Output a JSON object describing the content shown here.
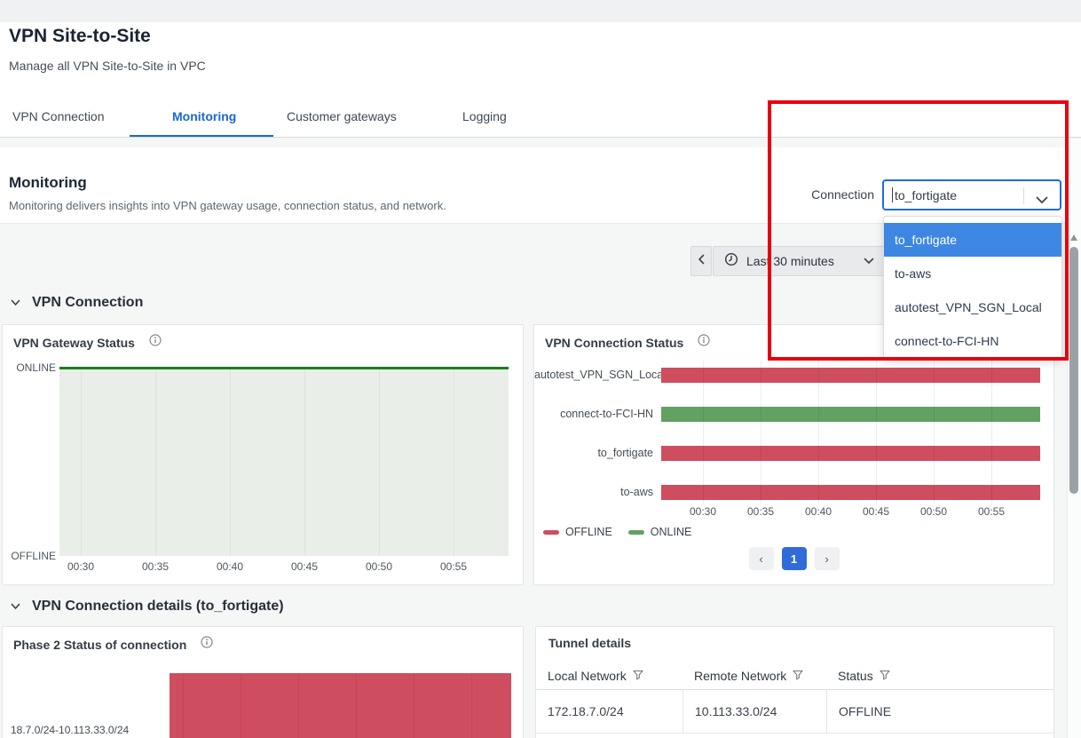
{
  "page": {
    "title": "VPN Site-to-Site",
    "subtitle": "Manage all VPN Site-to-Site in VPC"
  },
  "tabs": {
    "items": [
      {
        "label": "VPN Connection",
        "active": false
      },
      {
        "label": "Monitoring",
        "active": true
      },
      {
        "label": "Customer gateways",
        "active": false
      },
      {
        "label": "Logging",
        "active": false
      }
    ]
  },
  "monitoring": {
    "heading": "Monitoring",
    "description": "Monitoring delivers insights into VPN gateway usage, connection status, and network."
  },
  "connection_select": {
    "label": "Connection",
    "value": "to_fortigate",
    "options": [
      "to_fortigate",
      "to-aws",
      "autotest_VPN_SGN_Local",
      "connect-to-FCI-HN"
    ],
    "highlighted_option": "to_fortigate"
  },
  "time_range": {
    "label": "Last 30 minutes"
  },
  "sections": {
    "vpn_connection": "VPN Connection",
    "vpn_connection_details": "VPN Connection details (to_fortigate)"
  },
  "chart_data": [
    {
      "id": "vpn_gateway_status",
      "type": "area",
      "title": "VPN Gateway Status",
      "y_tick_labels": [
        "ONLINE",
        "OFFLINE"
      ],
      "x_tick_labels": [
        "00:30",
        "00:35",
        "00:40",
        "00:45",
        "00:50",
        "00:55"
      ],
      "series": [
        {
          "name": "VPN Gateway",
          "values": [
            {
              "x_range": [
                "00:30",
                "00:59"
              ],
              "y": "ONLINE"
            }
          ]
        }
      ],
      "line_color": "#1e7d1f",
      "fill_color": "#e9efe8",
      "grid": "vertical"
    },
    {
      "id": "vpn_connection_status",
      "type": "bar",
      "orientation": "horizontal",
      "title": "VPN Connection Status",
      "categories": [
        "autotest_VPN_SGN_Local",
        "connect-to-FCI-HN",
        "to_fortigate",
        "to-aws"
      ],
      "statuses": [
        "OFFLINE",
        "ONLINE",
        "OFFLINE",
        "OFFLINE"
      ],
      "x_tick_labels": [
        "00:30",
        "00:35",
        "00:40",
        "00:45",
        "00:50",
        "00:55"
      ],
      "x_range": [
        "00:30",
        "00:59"
      ],
      "legend": [
        {
          "label": "OFFLINE",
          "color": "#ce4d5f"
        },
        {
          "label": "ONLINE",
          "color": "#61a162"
        }
      ],
      "legend_position": "bottom-left"
    },
    {
      "id": "phase2_status",
      "type": "bar",
      "orientation": "horizontal",
      "title": "Phase 2 Status of connection",
      "categories": [
        "18.7.0/24-10.113.33.0/24"
      ],
      "statuses": [
        "OFFLINE"
      ],
      "bar_color": "#ce4d5f"
    }
  ],
  "pagination": {
    "current": "1",
    "prev": "‹",
    "next": "›"
  },
  "tunnel_details": {
    "title": "Tunnel details",
    "columns": [
      "Local Network",
      "Remote Network",
      "Status"
    ],
    "rows": [
      [
        "172.18.7.0/24",
        "10.113.33.0/24",
        "OFFLINE"
      ]
    ]
  },
  "icons": {
    "time_prev": "‹",
    "select_chevron": "chevron-down",
    "clock": "clock",
    "info": "info-circle",
    "filter": "funnel"
  },
  "colors": {
    "accent_blue": "#1a68d4",
    "select_border_blue": "#1c6ce2",
    "dropdown_highlight_blue": "#3d87e3",
    "pagination_blue": "#2f6bd9",
    "offline_red": "#ce4d5f",
    "online_green": "#61a162",
    "gateway_line_green": "#1e7d1f",
    "gateway_fill_green": "#e9efe8",
    "annotation_red": "#e8000f"
  }
}
